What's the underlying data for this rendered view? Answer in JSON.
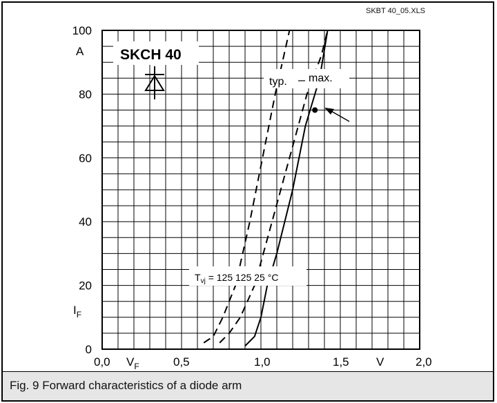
{
  "file_ref": "SKBT 40_05.XLS",
  "caption": "Fig. 9 Forward characteristics of a diode arm",
  "chart_data": {
    "type": "line",
    "title": "SKCH 40",
    "xlabel": "V",
    "ylabel": "A",
    "x_quantity_label": "V",
    "x_quantity_sub": "F",
    "y_quantity_label": "I",
    "y_quantity_sub": "F",
    "xlim": [
      0.0,
      2.0
    ],
    "ylim": [
      0,
      100
    ],
    "x_ticks": [
      "0,0",
      "0,5",
      "1,0",
      "1,5",
      "2,0"
    ],
    "y_ticks": [
      "0",
      "20",
      "40",
      "60",
      "80",
      "100"
    ],
    "grid": true,
    "temperature_legend": {
      "prefix": "T",
      "prefix_sub": "vj",
      "text": "= 125 125 25",
      "unit": "°C"
    },
    "curve_labels": {
      "typ": "typ.",
      "max": "max."
    },
    "series": [
      {
        "style": "dashed",
        "x": [
          0.64,
          0.7,
          0.76,
          0.84,
          0.93,
          1.01,
          1.09,
          1.18,
          1.25
        ],
        "y": [
          2,
          4,
          10,
          20,
          40,
          60,
          80,
          100,
          110
        ]
      },
      {
        "style": "dashed",
        "x": [
          0.74,
          0.8,
          0.87,
          0.96,
          1.07,
          1.18,
          1.29,
          1.38,
          1.42,
          1.45
        ],
        "y": [
          2,
          5,
          10,
          20,
          40,
          60,
          80,
          92,
          100,
          104
        ]
      },
      {
        "style": "solid",
        "x": [
          0.9,
          0.96,
          1.0,
          1.04,
          1.1,
          1.2,
          1.28,
          1.34,
          1.37,
          1.42,
          1.48
        ],
        "y": [
          1,
          4,
          10,
          20,
          30,
          50,
          70,
          80,
          85,
          100,
          110
        ]
      }
    ],
    "marker_point": {
      "x": 1.34,
      "y": 75
    }
  }
}
